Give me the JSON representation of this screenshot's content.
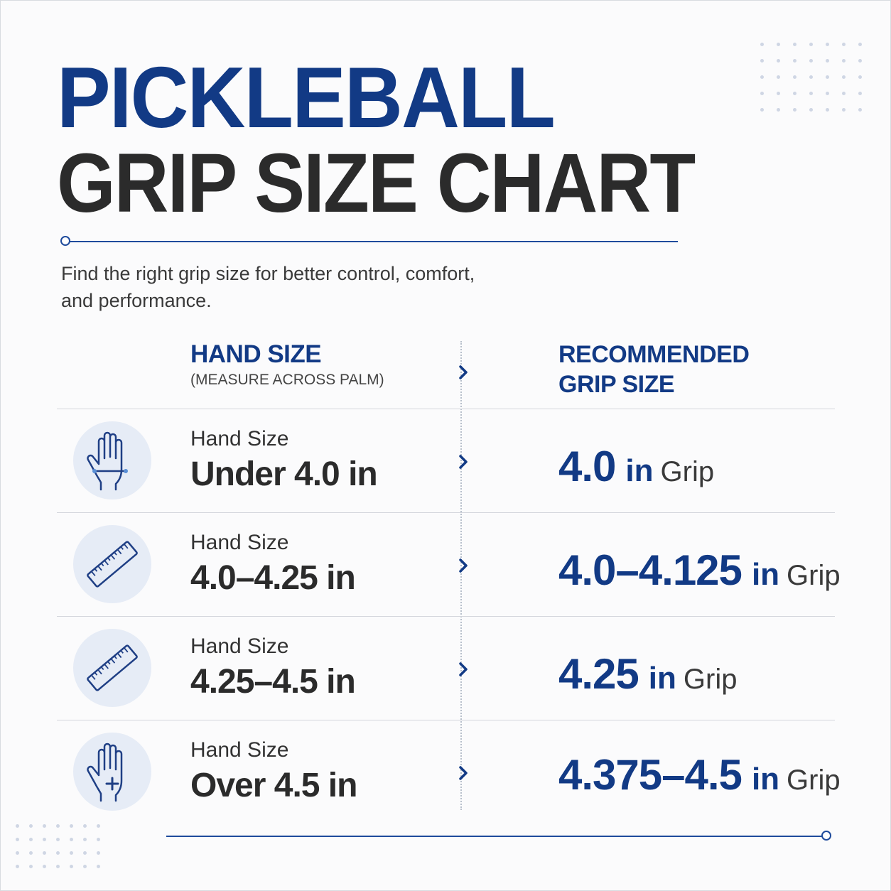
{
  "title": {
    "line1": "PICKLEBALL",
    "line2": "GRIP SIZE CHART"
  },
  "subtitle": "Find the right grip size for better control, comfort, and performance.",
  "headers": {
    "hand_size": "HAND SIZE",
    "hand_size_note": "(MEASURE ACROSS PALM)",
    "recommended": "RECOMMENDED GRIP SIZE"
  },
  "rows": [
    {
      "icon": "hand-measure-icon",
      "label": "Hand Size",
      "hand": "Under 4.0 in",
      "grip_value": "4.0",
      "grip_unit": "in",
      "grip_word": "Grip"
    },
    {
      "icon": "ruler-icon",
      "label": "Hand Size",
      "hand": "4.0–4.25 in",
      "grip_value": "4.0–4.125",
      "grip_unit": "in",
      "grip_word": "Grip"
    },
    {
      "icon": "ruler-icon",
      "label": "Hand Size",
      "hand": "4.25–4.5 in",
      "grip_value": "4.25",
      "grip_unit": "in",
      "grip_word": "Grip"
    },
    {
      "icon": "hand-plus-icon",
      "label": "Hand Size",
      "hand": "Over 4.5 in",
      "grip_value": "4.375–4.5",
      "grip_unit": "in",
      "grip_word": "Grip"
    }
  ],
  "colors": {
    "accent": "#123a85",
    "text": "#2b2b2b",
    "icon_bg": "#e6ecf6",
    "background": "#fbfbfc"
  }
}
